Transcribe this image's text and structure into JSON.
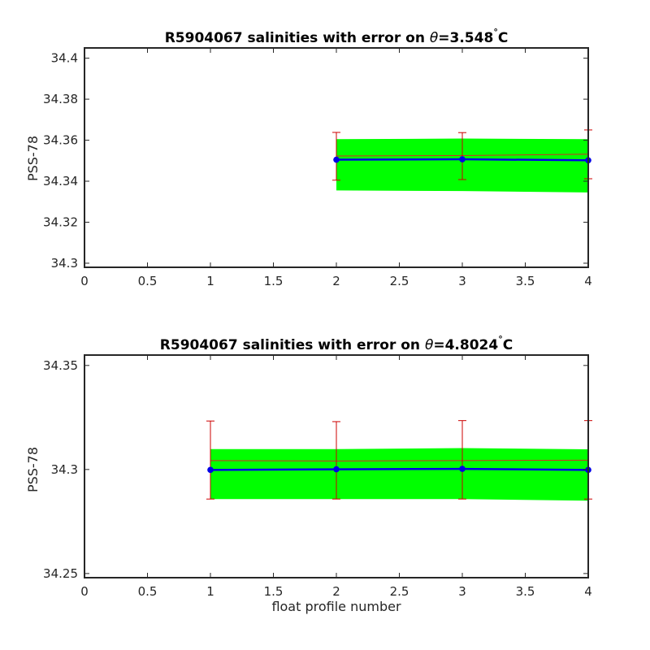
{
  "figure": {
    "xlabel": "float profile number"
  },
  "colors": {
    "error_band": "#00ff00",
    "mapped_line": "#d62728",
    "error_bar": "#cc0000",
    "float_series": "#0000e6",
    "axis": "#262626"
  },
  "chart_data": [
    {
      "type": "line",
      "title_prefix": "R5904067 salinities with error on ",
      "title_theta": "θ",
      "title_value": "=3.548",
      "title_deg": "°",
      "title_unit": "C",
      "ylabel": "PSS-78",
      "xlabel": "",
      "xlim": [
        0,
        4
      ],
      "ylim": [
        34.298,
        34.405
      ],
      "xticks": [
        "0",
        "0.5",
        "1",
        "1.5",
        "2",
        "2.5",
        "3",
        "3.5",
        "4"
      ],
      "yticks": [
        "34.3",
        "34.32",
        "34.34",
        "34.36",
        "34.38",
        "34.4"
      ],
      "x": [
        2,
        3,
        4
      ],
      "float_salinity": [
        34.3505,
        34.3507,
        34.3502
      ],
      "mapped_salinity": [
        34.3523,
        34.3525,
        34.3532
      ],
      "error_band_lower": [
        34.3355,
        34.3352,
        34.3345
      ],
      "error_band_upper": [
        34.3605,
        34.3608,
        34.3605
      ],
      "error_bar_lower": [
        34.3405,
        34.3408,
        34.3412
      ],
      "error_bar_upper": [
        34.3638,
        34.3637,
        34.365
      ],
      "grid": false
    },
    {
      "type": "line",
      "title_prefix": "R5904067 salinities with error on ",
      "title_theta": "θ",
      "title_value": "=4.8024",
      "title_deg": "°",
      "title_unit": "C",
      "ylabel": "PSS-78",
      "xlabel": "float profile number",
      "xlim": [
        0,
        4
      ],
      "ylim": [
        34.248,
        34.355
      ],
      "xticks": [
        "0",
        "0.5",
        "1",
        "1.5",
        "2",
        "2.5",
        "3",
        "3.5",
        "4"
      ],
      "yticks": [
        "34.25",
        "34.3",
        "34.35"
      ],
      "x": [
        1,
        2,
        3,
        4
      ],
      "float_salinity": [
        34.2998,
        34.3001,
        34.3003,
        34.2998
      ],
      "mapped_salinity": [
        34.3043,
        34.3041,
        34.3043,
        34.3045
      ],
      "error_band_lower": [
        34.2858,
        34.2858,
        34.2858,
        34.285
      ],
      "error_band_upper": [
        34.3098,
        34.3098,
        34.3103,
        34.3097
      ],
      "error_bar_lower": [
        34.2858,
        34.2858,
        34.2858,
        34.2858
      ],
      "error_bar_upper": [
        34.3233,
        34.323,
        34.3235,
        34.3235
      ],
      "grid": false
    }
  ]
}
